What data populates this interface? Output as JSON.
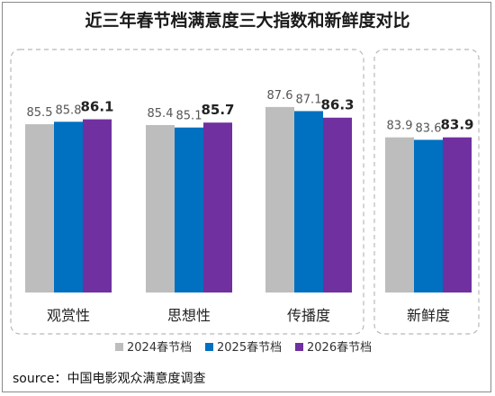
{
  "chart_data": {
    "type": "bar",
    "title": "近三年春节档满意度三大指数和新鲜度对比",
    "categories": [
      "观赏性",
      "思想性",
      "传播度",
      "新鲜度"
    ],
    "series": [
      {
        "name": "2024春节档",
        "color": "#bdbdbd",
        "values": [
          85.5,
          85.4,
          87.6,
          83.9
        ]
      },
      {
        "name": "2025春节档",
        "color": "#0070c0",
        "values": [
          85.8,
          85.1,
          87.1,
          83.6
        ]
      },
      {
        "name": "2026春节档",
        "color": "#7030a0",
        "values": [
          86.1,
          85.7,
          86.3,
          83.9
        ]
      }
    ],
    "value_labels": [
      [
        "85.5",
        "85.8",
        "86.1"
      ],
      [
        "85.4",
        "85.1",
        "85.7"
      ],
      [
        "87.6",
        "87.1",
        "86.3"
      ],
      [
        "83.9",
        "83.6",
        "83.9"
      ]
    ],
    "legend_position": "bottom",
    "grid": false,
    "axis_visible": false,
    "source": "source：中国电影观众满意度调查"
  }
}
